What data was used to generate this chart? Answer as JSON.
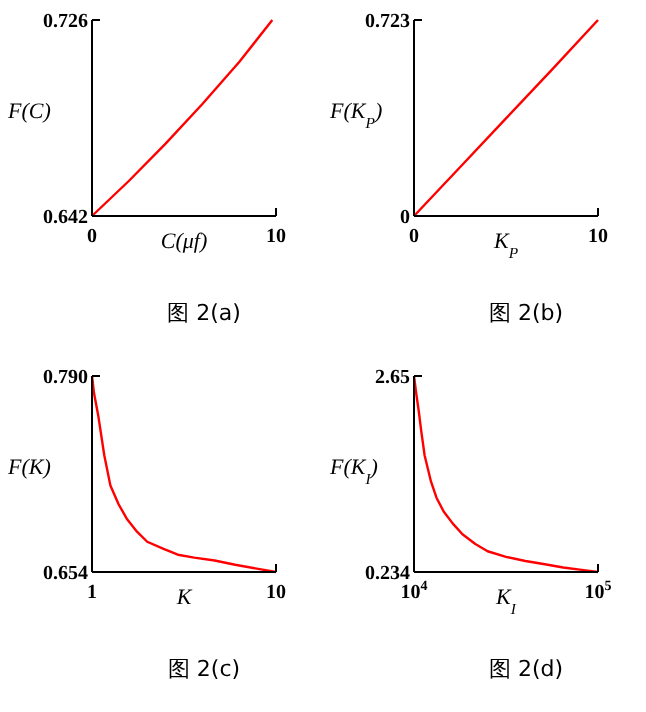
{
  "chart_data": [
    {
      "type": "line",
      "title": "图 2(a)",
      "xlabel": "C(μf)",
      "ylabel": "F(C)",
      "x": [
        0,
        2,
        4,
        6,
        8,
        9.8
      ],
      "series": [
        {
          "color": "#ff0000",
          "values": [
            0.642,
            0.657,
            0.673,
            0.69,
            0.708,
            0.726
          ]
        }
      ],
      "xlim": [
        0,
        10
      ],
      "ylim": [
        0.642,
        0.726
      ],
      "xticks": [
        0,
        10
      ],
      "yticks": [
        0.726,
        0.642
      ]
    },
    {
      "type": "line",
      "title": "图 2(b)",
      "xlabel": "K$_{P}$",
      "ylabel": "F(K$_{P}$)",
      "x": [
        0,
        2.5,
        5,
        7.5,
        10
      ],
      "series": [
        {
          "color": "#ff0000",
          "values": [
            0,
            0.18,
            0.36,
            0.54,
            0.723
          ]
        }
      ],
      "xlim": [
        0,
        10
      ],
      "ylim": [
        0,
        0.723
      ],
      "xticks": [
        0,
        10
      ],
      "yticks": [
        0.723,
        0
      ]
    },
    {
      "type": "line",
      "title": "图 2(c)",
      "xlabel": "K",
      "ylabel": "F(K)",
      "x": [
        1,
        1.1,
        1.3,
        1.6,
        1.9,
        2.3,
        2.7,
        3.2,
        3.7,
        4.5,
        5.2,
        6,
        7,
        8,
        9.2,
        10
      ],
      "series": [
        {
          "color": "#ff0000",
          "values": [
            0.79,
            0.778,
            0.763,
            0.735,
            0.714,
            0.701,
            0.691,
            0.682,
            0.675,
            0.67,
            0.666,
            0.664,
            0.662,
            0.659,
            0.656,
            0.654
          ]
        }
      ],
      "xlim": [
        1,
        10
      ],
      "ylim": [
        0.654,
        0.79
      ],
      "xticks": [
        1,
        10
      ],
      "yticks": [
        {
          "value": 0.79,
          "label": "0.790"
        },
        0.654
      ]
    },
    {
      "type": "line",
      "title": "图 2(d)",
      "xlabel": "K$_{I}$",
      "ylabel": "F(K$_{I}$)",
      "x": [
        10000,
        11000,
        12200,
        13500,
        15200,
        18300,
        21000,
        24500,
        29000,
        33700,
        40000,
        46000,
        55000,
        64500,
        74000,
        83000,
        92000,
        100000
      ],
      "series": [
        {
          "color": "#ff0000",
          "values": [
            2.65,
            2.45,
            2.24,
            1.98,
            1.67,
            1.35,
            1.15,
            0.98,
            0.83,
            0.7,
            0.58,
            0.49,
            0.42,
            0.37,
            0.33,
            0.29,
            0.26,
            0.234
          ]
        }
      ],
      "xlim": [
        10000,
        100000
      ],
      "ylim": [
        0.234,
        2.65
      ],
      "xticks": [
        {
          "value": 10000,
          "label": "10$^{4}$"
        },
        {
          "value": 100000,
          "label": "10$^{5}$"
        }
      ],
      "yticks": [
        2.65,
        0.234
      ]
    }
  ]
}
